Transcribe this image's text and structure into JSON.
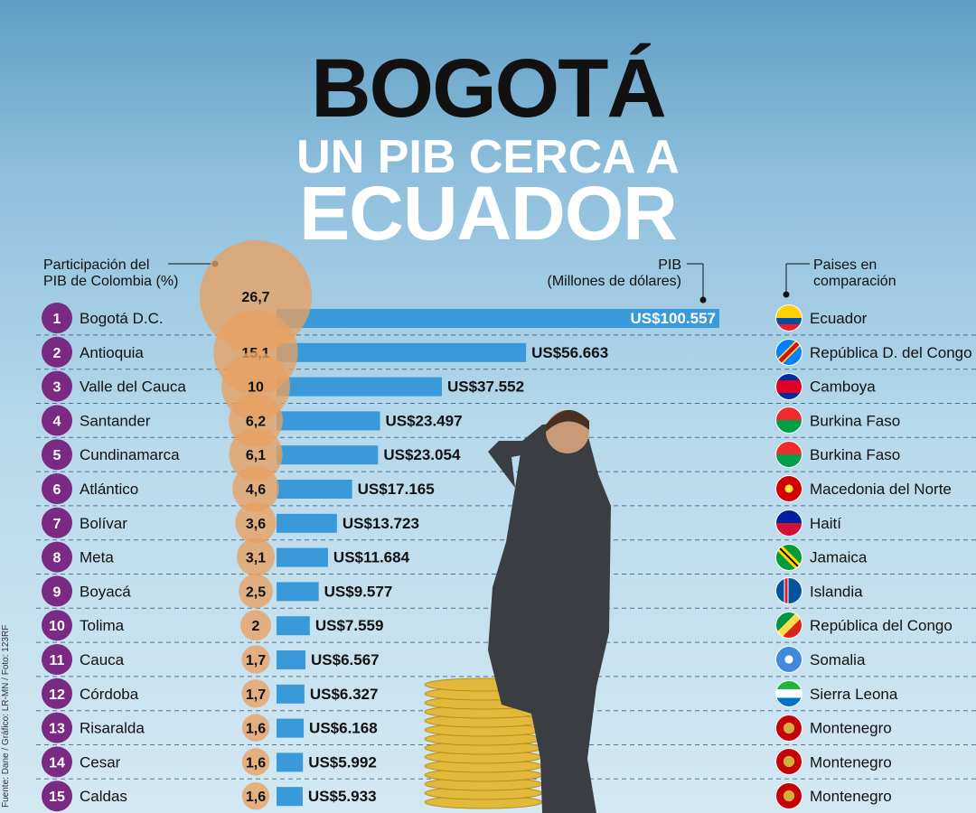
{
  "title": {
    "line1": "BOGOTÁ",
    "line2": "UN PIB CERCA A",
    "line3": "ECUADOR"
  },
  "headers": {
    "share_line1": "Participación del",
    "share_line2": "PIB de Colombia (%)",
    "pib_line1": "PIB",
    "pib_line2": "(Millones de dólares)",
    "countries_line1": "Paises en",
    "countries_line2": "comparación"
  },
  "credit": "Fuente: Dane / Gráfico: LR-MN / Foto: 123RF",
  "colors": {
    "bar": "#3a9ad9",
    "rank_circle": "#7a2a82",
    "bubble": "#e8a060",
    "accent_text": "#111111"
  },
  "chart_data": {
    "type": "bar",
    "orientation": "horizontal",
    "value_unit": "Millones de dólares",
    "categories": [
      "Bogotá D.C.",
      "Antioquia",
      "Valle del Cauca",
      "Santander",
      "Cundinamarca",
      "Atlántico",
      "Bolívar",
      "Meta",
      "Boyacá",
      "Tolima",
      "Cauca",
      "Córdoba",
      "Risaralda",
      "Cesar",
      "Caldas"
    ],
    "ranks": [
      "1",
      "2",
      "3",
      "4",
      "5",
      "6",
      "7",
      "8",
      "9",
      "10",
      "11",
      "12",
      "13",
      "14",
      "15"
    ],
    "values": [
      100557,
      56663,
      37552,
      23497,
      23054,
      17165,
      13723,
      11684,
      9577,
      7559,
      6567,
      6327,
      6168,
      5992,
      5933
    ],
    "value_labels": [
      "US$100.557",
      "US$56.663",
      "US$37.552",
      "US$23.497",
      "US$23.054",
      "US$17.165",
      "US$13.723",
      "US$11.684",
      "US$9.577",
      "US$7.559",
      "US$6.567",
      "US$6.327",
      "US$6.168",
      "US$5.992",
      "US$5.933"
    ],
    "share_values": [
      26.7,
      15.1,
      10,
      6.2,
      6.1,
      4.6,
      3.6,
      3.1,
      2.5,
      2,
      1.7,
      1.7,
      1.6,
      1.6,
      1.6
    ],
    "share_labels": [
      "26,7",
      "15,1",
      "10",
      "6,2",
      "6,1",
      "4,6",
      "3,6",
      "3,1",
      "2,5",
      "2",
      "1,7",
      "1,7",
      "1,6",
      "1,6",
      "1,6"
    ],
    "countries": [
      "Ecuador",
      "República D. del Congo",
      "Camboya",
      "Burkina Faso",
      "Burkina Faso",
      "Macedonia del Norte",
      "Haití",
      "Jamaica",
      "Islandia",
      "República del Congo",
      "Somalia",
      "Sierra Leona",
      "Montenegro",
      "Montenegro",
      "Montenegro"
    ],
    "flag_icons": [
      "ecuador-flag-icon",
      "dr-congo-flag-icon",
      "cambodia-flag-icon",
      "burkina-faso-flag-icon",
      "burkina-faso-flag-icon",
      "north-macedonia-flag-icon",
      "haiti-flag-icon",
      "jamaica-flag-icon",
      "iceland-flag-icon",
      "congo-flag-icon",
      "somalia-flag-icon",
      "sierra-leone-flag-icon",
      "montenegro-flag-icon",
      "montenegro-flag-icon",
      "montenegro-flag-icon"
    ]
  }
}
